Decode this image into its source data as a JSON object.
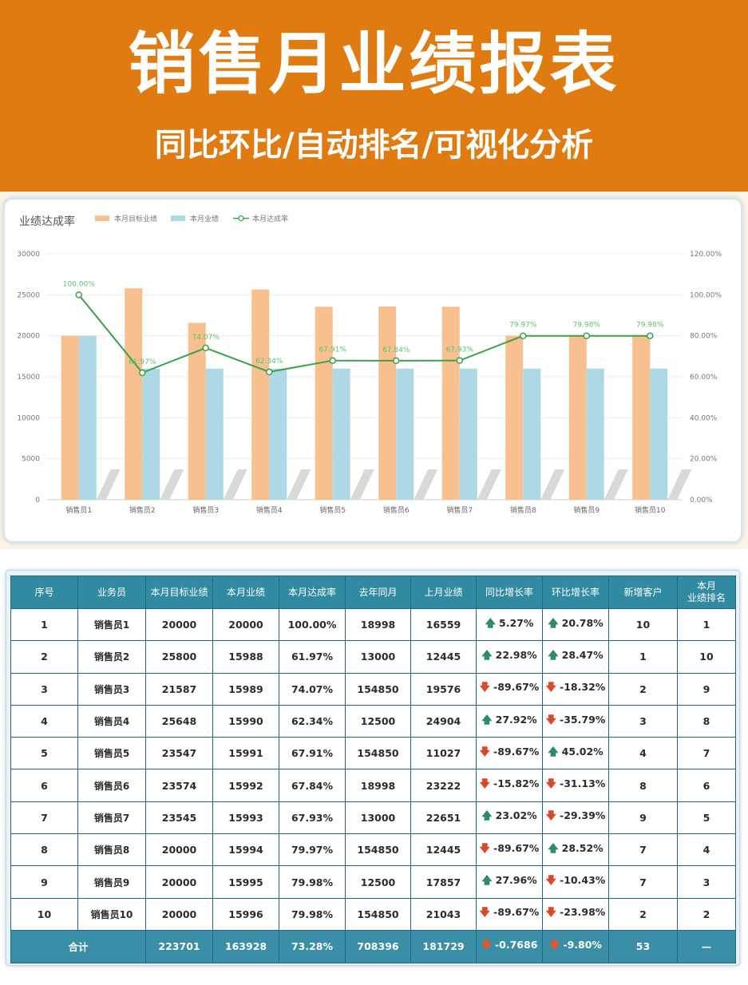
{
  "header": {
    "title": "销售月业绩报表",
    "subtitle": "同比环比/自动排名/可视化分析"
  },
  "colors": {
    "banner": "#e07b12",
    "target_bar": "#f8c08e",
    "actual_bar": "#add8e6",
    "rate_line": "#3ba14a",
    "table_header": "#2f8aa2",
    "up_arrow": "#2e8b6a",
    "down_arrow": "#d94a2c"
  },
  "chart_data": {
    "type": "bar",
    "title": "业绩达成率",
    "legend": [
      "本月目标业绩",
      "本月业绩",
      "本月达成率"
    ],
    "legend_position": "top-left",
    "categories": [
      "销售员1",
      "销售员2",
      "销售员3",
      "销售员4",
      "销售员5",
      "销售员6",
      "销售员7",
      "销售员8",
      "销售员9",
      "销售员10"
    ],
    "series": [
      {
        "name": "本月目标业绩",
        "type": "bar",
        "axis": "left",
        "values": [
          20000,
          25800,
          21587,
          25648,
          23547,
          23574,
          23545,
          20000,
          20000,
          20000
        ]
      },
      {
        "name": "本月业绩",
        "type": "bar",
        "axis": "left",
        "values": [
          20000,
          15988,
          15989,
          15990,
          15991,
          15992,
          15993,
          15994,
          15995,
          15996
        ]
      },
      {
        "name": "本月达成率",
        "type": "line",
        "axis": "right",
        "values": [
          100.0,
          61.97,
          74.07,
          62.34,
          67.91,
          67.84,
          67.93,
          79.97,
          79.98,
          79.98
        ]
      }
    ],
    "data_labels": [
      "100.00%",
      "61.97%",
      "74.07%",
      "62.34%",
      "67.91%",
      "67.84%",
      "67.93%",
      "79.97%",
      "79.98%",
      "79.98%"
    ],
    "y_left": {
      "min": 0,
      "max": 30000,
      "ticks": [
        "0",
        "5000",
        "10000",
        "15000",
        "20000",
        "25000",
        "30000"
      ]
    },
    "y_right": {
      "min": 0,
      "max": 120,
      "ticks": [
        "0.00%",
        "20.00%",
        "40.00%",
        "60.00%",
        "80.00%",
        "100.00%",
        "120.00%"
      ]
    }
  },
  "table": {
    "headers": [
      "序号",
      "业务员",
      "本月目标业绩",
      "本月业绩",
      "本月达成率",
      "去年同月",
      "上月业绩",
      "同比增长率",
      "环比增长率",
      "新增客户",
      "本月\n业绩排名"
    ],
    "rows": [
      {
        "no": "1",
        "name": "销售员1",
        "target": "20000",
        "actual": "20000",
        "rate": "100.00%",
        "last_year": "18998",
        "last_month": "16559",
        "yoy": "5.27%",
        "yoy_dir": "up",
        "mom": "20.78%",
        "mom_dir": "up",
        "new_customers": "10",
        "rank": "1"
      },
      {
        "no": "2",
        "name": "销售员2",
        "target": "25800",
        "actual": "15988",
        "rate": "61.97%",
        "last_year": "13000",
        "last_month": "12445",
        "yoy": "22.98%",
        "yoy_dir": "up",
        "mom": "28.47%",
        "mom_dir": "up",
        "new_customers": "1",
        "rank": "10"
      },
      {
        "no": "3",
        "name": "销售员3",
        "target": "21587",
        "actual": "15989",
        "rate": "74.07%",
        "last_year": "154850",
        "last_month": "19576",
        "yoy": "-89.67%",
        "yoy_dir": "down",
        "mom": "-18.32%",
        "mom_dir": "down",
        "new_customers": "2",
        "rank": "9"
      },
      {
        "no": "4",
        "name": "销售员4",
        "target": "25648",
        "actual": "15990",
        "rate": "62.34%",
        "last_year": "12500",
        "last_month": "24904",
        "yoy": "27.92%",
        "yoy_dir": "up",
        "mom": "-35.79%",
        "mom_dir": "down",
        "new_customers": "3",
        "rank": "8"
      },
      {
        "no": "5",
        "name": "销售员5",
        "target": "23547",
        "actual": "15991",
        "rate": "67.91%",
        "last_year": "154850",
        "last_month": "11027",
        "yoy": "-89.67%",
        "yoy_dir": "down",
        "mom": "45.02%",
        "mom_dir": "up",
        "new_customers": "4",
        "rank": "7"
      },
      {
        "no": "6",
        "name": "销售员6",
        "target": "23574",
        "actual": "15992",
        "rate": "67.84%",
        "last_year": "18998",
        "last_month": "23222",
        "yoy": "-15.82%",
        "yoy_dir": "down",
        "mom": "-31.13%",
        "mom_dir": "down",
        "new_customers": "8",
        "rank": "6"
      },
      {
        "no": "7",
        "name": "销售员7",
        "target": "23545",
        "actual": "15993",
        "rate": "67.93%",
        "last_year": "13000",
        "last_month": "22651",
        "yoy": "23.02%",
        "yoy_dir": "up",
        "mom": "-29.39%",
        "mom_dir": "down",
        "new_customers": "9",
        "rank": "5"
      },
      {
        "no": "8",
        "name": "销售员8",
        "target": "20000",
        "actual": "15994",
        "rate": "79.97%",
        "last_year": "154850",
        "last_month": "12445",
        "yoy": "-89.67%",
        "yoy_dir": "down",
        "mom": "28.52%",
        "mom_dir": "up",
        "new_customers": "7",
        "rank": "4"
      },
      {
        "no": "9",
        "name": "销售员9",
        "target": "20000",
        "actual": "15995",
        "rate": "79.98%",
        "last_year": "12500",
        "last_month": "17857",
        "yoy": "27.96%",
        "yoy_dir": "up",
        "mom": "-10.43%",
        "mom_dir": "down",
        "new_customers": "7",
        "rank": "3"
      },
      {
        "no": "10",
        "name": "销售员10",
        "target": "20000",
        "actual": "15996",
        "rate": "79.98%",
        "last_year": "154850",
        "last_month": "21043",
        "yoy": "-89.67%",
        "yoy_dir": "down",
        "mom": "-23.98%",
        "mom_dir": "down",
        "new_customers": "2",
        "rank": "2"
      }
    ],
    "total": {
      "label": "合计",
      "target": "223701",
      "actual": "163928",
      "rate": "73.28%",
      "last_year": "708396",
      "last_month": "181729",
      "yoy": "-0.7686",
      "yoy_dir": "down",
      "mom": "-9.80%",
      "mom_dir": "down",
      "new_customers": "53",
      "rank": "—"
    }
  }
}
